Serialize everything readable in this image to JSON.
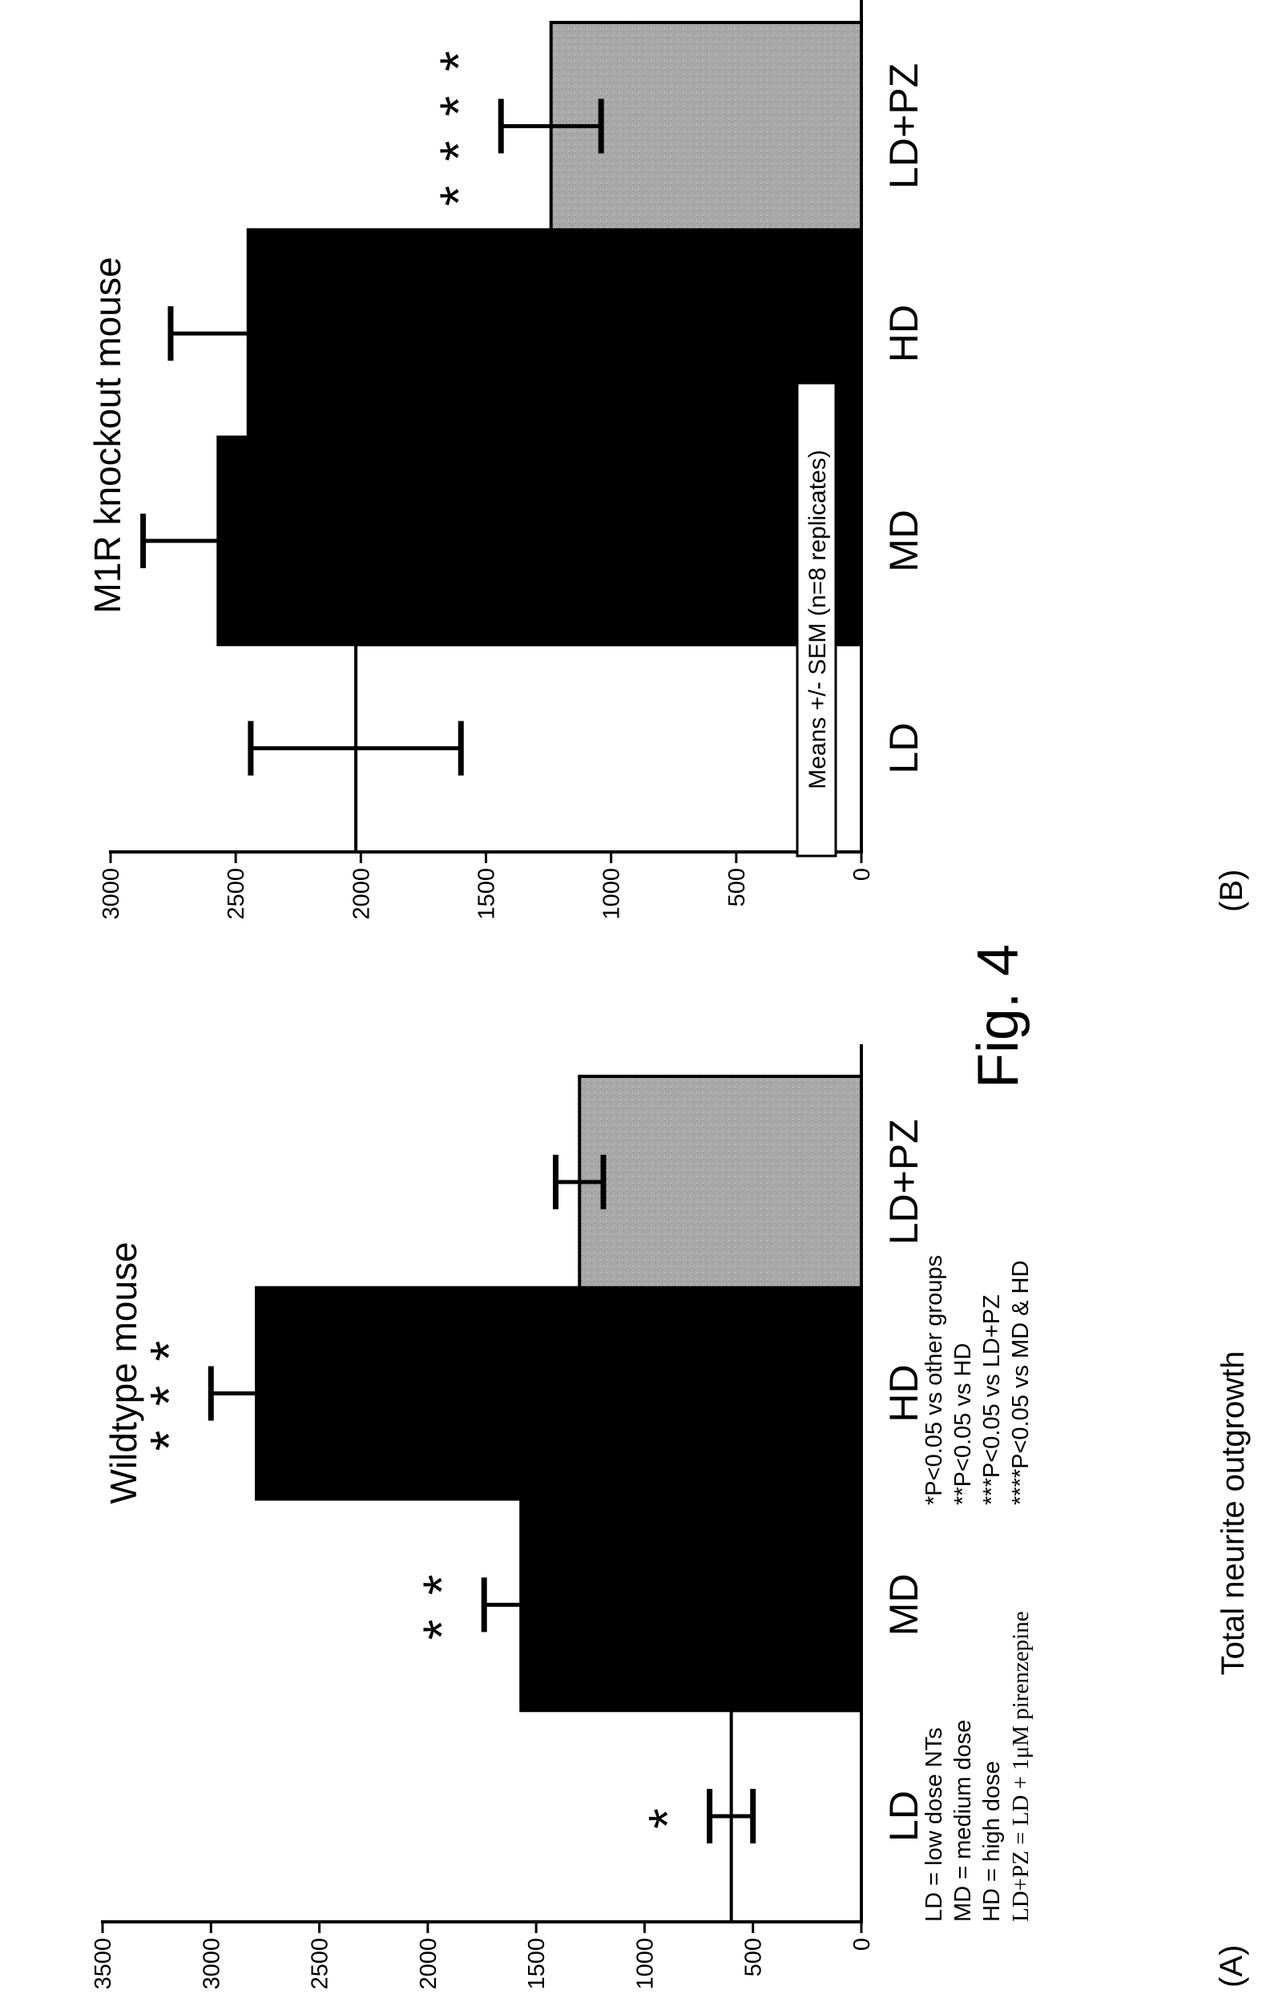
{
  "figure": {
    "caption": "Fig. 4",
    "ylabel": "Total neurite outgrowth",
    "categories": [
      "LD",
      "MD",
      "HD",
      "LD+PZ"
    ],
    "colors": {
      "dark": "#000000",
      "light": "#ffffff",
      "gray": "#a9a9a9"
    }
  },
  "chart_data": [
    {
      "type": "bar",
      "panel": "(A)",
      "title": "Wildtype mouse",
      "ylabel": "Total neurite outgrowth",
      "ylim": [
        0,
        3500
      ],
      "yticks": [
        "0",
        "500",
        "1000",
        "1500",
        "2000",
        "2500",
        "3000",
        "3500"
      ],
      "categories": [
        "LD",
        "MD",
        "HD",
        "LD+PZ"
      ],
      "values": [
        600,
        1570,
        2790,
        1300
      ],
      "errors": [
        100,
        170,
        210,
        110
      ],
      "bar_colors": [
        "white",
        "black",
        "black",
        "gray"
      ],
      "significance": [
        "*",
        "**",
        "***",
        ""
      ],
      "abbreviations": [
        "LD = low dose NTs",
        "MD = medium dose",
        "HD = high dose",
        "LD+PZ = LD + 1μM pirenzepine"
      ],
      "notes": [
        "*P<0.05 vs other groups",
        "**P<0.05 vs HD",
        "***P<0.05 vs LD+PZ",
        "****P<0.05 vs MD & HD"
      ]
    },
    {
      "type": "bar",
      "panel": "(B)",
      "title": "M1R knockout mouse",
      "ylim": [
        0,
        3000
      ],
      "yticks": [
        "0",
        "500",
        "1000",
        "1500",
        "2000",
        "2500",
        "3000"
      ],
      "categories": [
        "LD",
        "MD",
        "HD",
        "LD+PZ"
      ],
      "values": [
        2020,
        2570,
        2450,
        1240
      ],
      "errors": [
        420,
        300,
        310,
        200
      ],
      "bar_colors": [
        "white",
        "black",
        "black",
        "gray"
      ],
      "significance": [
        "",
        "",
        "",
        "****"
      ],
      "legend_box": "Means +/- SEM (n=8 replicates)"
    }
  ]
}
